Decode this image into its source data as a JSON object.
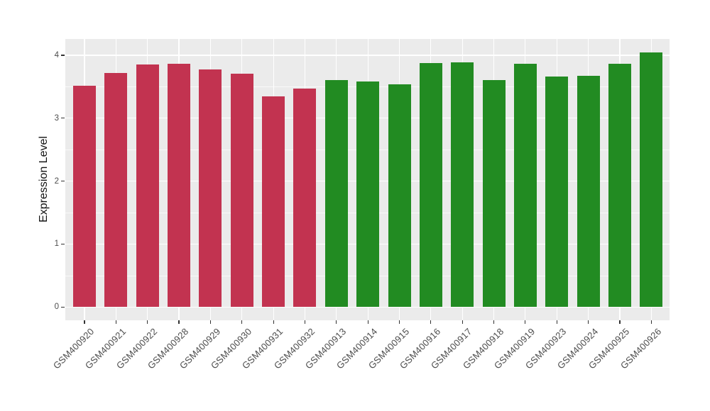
{
  "chart_data": {
    "type": "bar",
    "title": "",
    "xlabel": "",
    "ylabel": "Expression Level",
    "categories": [
      "GSM400920",
      "GSM400921",
      "GSM400922",
      "GSM400928",
      "GSM400929",
      "GSM400930",
      "GSM400931",
      "GSM400932",
      "GSM400913",
      "GSM400914",
      "GSM400915",
      "GSM400916",
      "GSM400917",
      "GSM400918",
      "GSM400919",
      "GSM400923",
      "GSM400924",
      "GSM400925",
      "GSM400926"
    ],
    "values": [
      3.52,
      3.72,
      3.85,
      3.86,
      3.78,
      3.71,
      3.35,
      3.47,
      3.61,
      3.58,
      3.54,
      3.88,
      3.89,
      3.61,
      3.86,
      3.66,
      3.67,
      3.87,
      4.04
    ],
    "bar_colors": [
      "#c23350",
      "#c23350",
      "#c23350",
      "#c23350",
      "#c23350",
      "#c23350",
      "#c23350",
      "#c23350",
      "#228b22",
      "#228b22",
      "#228b22",
      "#228b22",
      "#228b22",
      "#228b22",
      "#228b22",
      "#228b22",
      "#228b22",
      "#228b22",
      "#228b22"
    ],
    "group_colors": {
      "left_group_red": "#c23350",
      "right_group_green": "#228b22"
    },
    "ylim": [
      0,
      4.25
    ],
    "ytick_values": [
      0,
      1,
      2,
      3,
      4
    ],
    "ytick_labels": [
      "0",
      "1",
      "2",
      "3",
      "4"
    ],
    "minor_ytick_values": [
      0.5,
      1.5,
      2.5,
      3.5
    ],
    "grid": "major and minor horizontal white lines, vertical white line per category, on grey panel",
    "legend": "none",
    "style": {
      "panel_background": "#ebebeb",
      "grid_color": "#ffffff",
      "tick_mark_color": "#333333",
      "tick_label_color": "#4d4d4d",
      "axis_title_color": "#111111",
      "figure_background": "#ffffff"
    }
  }
}
